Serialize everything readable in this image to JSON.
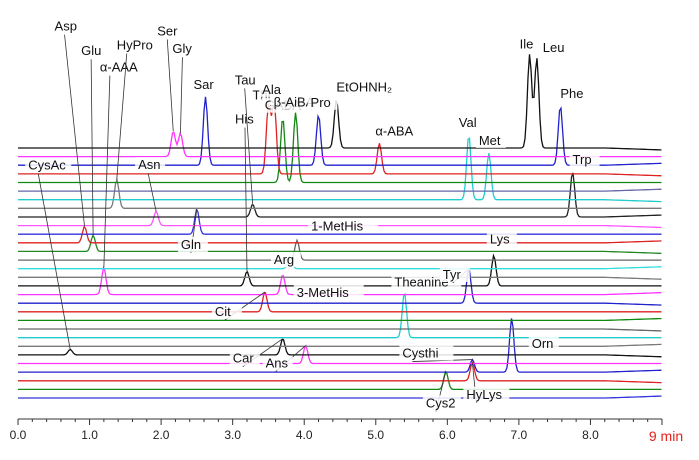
{
  "chart_data": {
    "type": "line",
    "title": "",
    "xlabel": "",
    "ylabel": "",
    "x_unit_label": "9 min",
    "xlim": [
      0,
      9
    ],
    "x_ticks": [
      "0.0",
      "1.0",
      "2.0",
      "3.0",
      "4.0",
      "5.0",
      "6.0",
      "7.0",
      "8.0"
    ],
    "grid": false,
    "legend": "none",
    "trace_colors": [
      "#111111",
      "#ff33ff",
      "#2222cc",
      "#dd2222",
      "#118811",
      "#6666aa",
      "#22cccc",
      "#7a7a7a",
      "#222222",
      "#ff55ff",
      "#3333dd",
      "#dd2222",
      "#228822",
      "#666666",
      "#33dddd",
      "#7a7a7a",
      "#111111",
      "#ff33ff",
      "#2222cc",
      "#dd2222",
      "#118811",
      "#666666",
      "#22cccc",
      "#7a7a7a",
      "#111111",
      "#ff33ff",
      "#2222cc",
      "#dd2222",
      "#118811",
      "#3333dd"
    ],
    "peaks": [
      {
        "label": "CysAc",
        "t": 0.73,
        "trace": 24,
        "height": 0.3
      },
      {
        "label": "Asp",
        "t": 0.93,
        "trace": 11,
        "height": 0.9
      },
      {
        "label": "Glu",
        "t": 1.05,
        "trace": 12,
        "height": 0.9
      },
      {
        "label": "α-AAA",
        "t": 1.2,
        "trace": 17,
        "height": 1.5
      },
      {
        "label": "HyPro",
        "t": 1.38,
        "trace": 7,
        "height": 1.6
      },
      {
        "label": "Asn",
        "t": 1.93,
        "trace": 9,
        "height": 0.8
      },
      {
        "label": "Ser",
        "t": 2.17,
        "trace": 1,
        "height": 1.4
      },
      {
        "label": "Gly",
        "t": 2.27,
        "trace": 1,
        "height": 1.3
      },
      {
        "label": "Sar",
        "t": 2.62,
        "trace": 2,
        "height": 3.8
      },
      {
        "label": "Gln",
        "t": 2.5,
        "trace": 10,
        "height": 1.4
      },
      {
        "label": "His",
        "t": 3.2,
        "trace": 16,
        "height": 0.8
      },
      {
        "label": "Tau",
        "t": 3.28,
        "trace": 8,
        "height": 0.7
      },
      {
        "label": "Thr",
        "t": 3.5,
        "trace": 3,
        "height": 3.8
      },
      {
        "label": "Ala",
        "t": 3.58,
        "trace": 3,
        "height": 4.0
      },
      {
        "label": "GABA",
        "t": 3.7,
        "trace": 4,
        "height": 3.6
      },
      {
        "label": "β-AiBA",
        "t": 3.88,
        "trace": 4,
        "height": 3.9
      },
      {
        "label": "Arg",
        "t": 3.8,
        "trace": 14,
        "height": 0.7
      },
      {
        "label": "1-MetHis",
        "t": 3.9,
        "trace": 13,
        "height": 1.1
      },
      {
        "label": "3-MetHis",
        "t": 3.7,
        "trace": 17,
        "height": 1.1
      },
      {
        "label": "Cit",
        "t": 3.45,
        "trace": 19,
        "height": 1.1
      },
      {
        "label": "Car",
        "t": 3.7,
        "trace": 24,
        "height": 0.9
      },
      {
        "label": "Ans",
        "t": 4.02,
        "trace": 25,
        "height": 1.0
      },
      {
        "label": "Pro",
        "t": 4.2,
        "trace": 2,
        "height": 2.8
      },
      {
        "label": "EtOHNH₂",
        "t": 4.45,
        "trace": 0,
        "height": 2.7
      },
      {
        "label": "α-ABA",
        "t": 5.05,
        "trace": 3,
        "height": 1.7
      },
      {
        "label": "Theanine",
        "t": 5.4,
        "trace": 22,
        "height": 2.5
      },
      {
        "label": "Val",
        "t": 6.3,
        "trace": 6,
        "height": 3.6
      },
      {
        "label": "Tyr",
        "t": 6.3,
        "trace": 18,
        "height": 1.9
      },
      {
        "label": "Met",
        "t": 6.58,
        "trace": 6,
        "height": 2.6
      },
      {
        "label": "Lys",
        "t": 6.65,
        "trace": 16,
        "height": 1.7
      },
      {
        "label": "Cysthi",
        "t": 6.35,
        "trace": 26,
        "height": 0.7
      },
      {
        "label": "Cys2",
        "t": 5.98,
        "trace": 28,
        "height": 1.0
      },
      {
        "label": "HyLys",
        "t": 6.35,
        "trace": 27,
        "height": 1.0
      },
      {
        "label": "Orn",
        "t": 6.9,
        "trace": 26,
        "height": 3.0
      },
      {
        "label": "Ile",
        "t": 7.15,
        "trace": 0,
        "height": 5.2
      },
      {
        "label": "Leu",
        "t": 7.25,
        "trace": 0,
        "height": 5.0
      },
      {
        "label": "Phe",
        "t": 7.58,
        "trace": 2,
        "height": 3.3
      },
      {
        "label": "Trp",
        "t": 7.75,
        "trace": 8,
        "height": 2.5
      }
    ]
  }
}
